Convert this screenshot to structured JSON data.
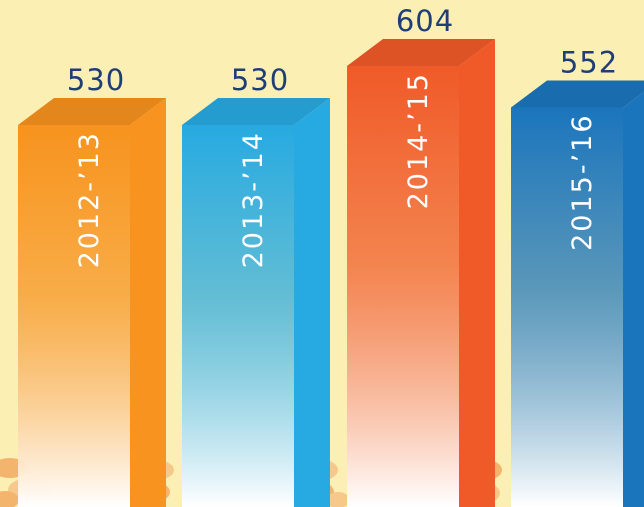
{
  "chart_data": {
    "type": "bar",
    "categories": [
      "2012-’13",
      "2013-’14",
      "2014-’15",
      "2015-’16"
    ],
    "values": [
      530,
      530,
      604,
      552
    ],
    "value_labels": [
      "530",
      "530",
      "604",
      "552"
    ],
    "title": "",
    "xlabel": "",
    "ylabel": "",
    "bar_colors": [
      "#f7931e",
      "#27aae1",
      "#f05a28",
      "#1b75bc"
    ],
    "value_label_color": "#1f3e78",
    "background_color": "#fbefb4"
  }
}
